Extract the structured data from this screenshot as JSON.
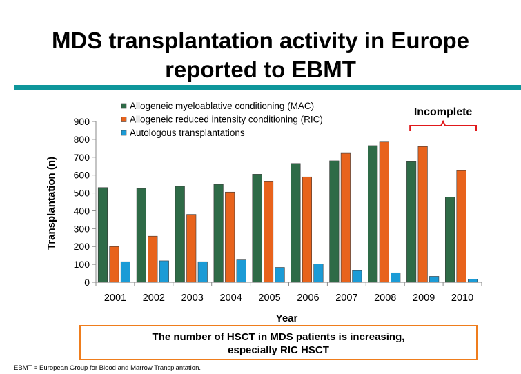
{
  "slide": {
    "title_line1": "MDS transplantation activity in Europe",
    "title_line2": "reported to EBMT",
    "conclusion_line1": "The number of HSCT in MDS patients is increasing,",
    "conclusion_line2": "especially RIC HSCT",
    "footnote": "EBMT = European Group for Blood and Marrow Transplantation."
  },
  "chart_data": {
    "type": "bar",
    "categories": [
      "2001",
      "2002",
      "2003",
      "2004",
      "2005",
      "2006",
      "2007",
      "2008",
      "2009",
      "2010"
    ],
    "series": [
      {
        "name": "Allogeneic myeloablative conditioning (MAC)",
        "color": "#2e6b47",
        "values": [
          530,
          525,
          537,
          548,
          605,
          665,
          680,
          765,
          675,
          477
        ]
      },
      {
        "name": "Allogeneic reduced intensity conditioning (RIC)",
        "color": "#e8631c",
        "values": [
          200,
          258,
          380,
          505,
          563,
          590,
          722,
          785,
          760,
          625
        ]
      },
      {
        "name": "Autologous transplantations",
        "color": "#1b9bd6",
        "values": [
          115,
          120,
          115,
          125,
          83,
          103,
          65,
          53,
          33,
          18
        ]
      }
    ],
    "xlabel": "Year",
    "ylabel": "Transplantation (n)",
    "ylim": [
      0,
      900
    ],
    "yticks": [
      0,
      100,
      200,
      300,
      400,
      500,
      600,
      700,
      800,
      900
    ],
    "grid": false,
    "legend_position": "top-left",
    "annotation": {
      "text": "Incomplete",
      "color": "#e0191b",
      "spans": [
        "2009",
        "2010"
      ]
    }
  }
}
